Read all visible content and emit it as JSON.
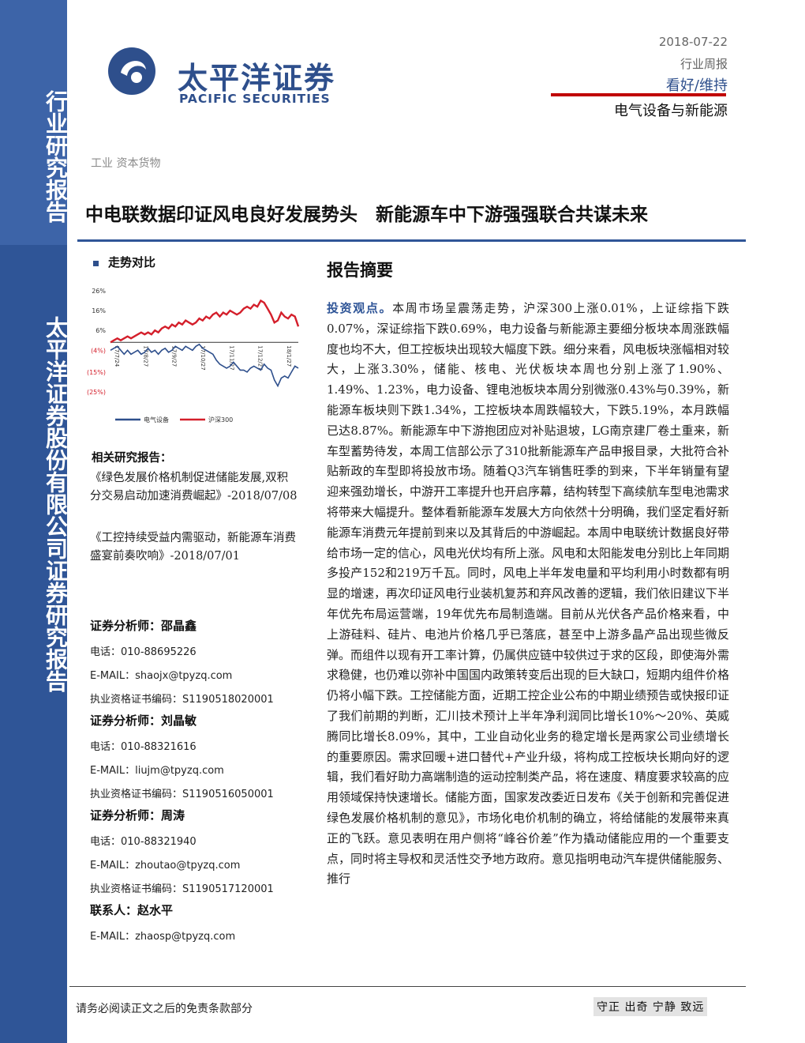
{
  "sidebar": {
    "top_text": "行业研究报告",
    "bottom_text": "太平洋证券股份有限公司证券研究报告"
  },
  "header": {
    "logo_cn": "太平洋证券",
    "logo_en": "PACIFIC SECURITIES",
    "date": "2018-07-22",
    "report_type": "行业周报",
    "rating": "看好/维持",
    "sector": "电气设备与新能源"
  },
  "industry_tag": "工业 资本货物",
  "title": "中电联数据印证风电良好发展势头　新能源车中下游强强联合共谋未来",
  "trend": {
    "heading": "走势对比"
  },
  "chart_data": {
    "type": "line",
    "y_ticks": [
      "26%",
      "16%",
      "6%",
      "(4%)",
      "(15%)",
      "(25%)"
    ],
    "x_ticks": [
      "17/7/24",
      "17/8/27",
      "17/9/27",
      "17/10/27",
      "17/11/27",
      "17/12/27",
      "18/1/27"
    ],
    "ylim": [
      -25,
      26
    ],
    "colors": {
      "电气设备": "#2e4f8c",
      "沪深300": "#d41f2b"
    },
    "series": [
      {
        "name": "电气设备",
        "values": [
          -4,
          -3,
          -2,
          -4,
          -6,
          -4,
          -6,
          -5,
          -4,
          -6,
          -5,
          -3,
          -5,
          -4,
          -6,
          -4,
          -3,
          -5,
          -4,
          -2,
          -3,
          -4,
          -2,
          -3,
          -4,
          -2,
          -1,
          -3,
          -4,
          -5,
          -6,
          -9,
          -11,
          -12,
          -13,
          -12,
          -10,
          -12,
          -14,
          -14,
          -15,
          -13,
          -12,
          -13,
          -14,
          -11,
          -13,
          -14,
          -19,
          -22,
          -18,
          -17,
          -18,
          -15,
          -12,
          -13
        ]
      },
      {
        "name": "沪深300",
        "values": [
          0,
          1,
          2,
          1,
          2,
          3,
          2,
          3,
          4,
          5,
          4,
          5,
          4,
          6,
          5,
          7,
          8,
          7,
          9,
          8,
          10,
          9,
          11,
          10,
          9,
          10,
          12,
          11,
          13,
          12,
          14,
          15,
          13,
          15,
          14,
          16,
          15,
          14,
          15,
          17,
          18,
          17,
          19,
          18,
          21,
          20,
          17,
          14,
          10,
          11,
          15,
          13,
          12,
          14,
          13,
          8
        ]
      }
    ]
  },
  "related": {
    "heading": "相关研究报告：",
    "items": [
      "《绿色发展价格机制促进储能发展,双积分交易启动加速消费崛起》-2018/07/08",
      "《工控持续受益内需驱动，新能源车消费盛宴前奏吹响》-2018/07/01"
    ]
  },
  "analysts": [
    {
      "title": "证券分析师：邵晶鑫",
      "phone": "电话：010-88695226",
      "email": "E-MAIL：shaojx@tpyzq.com",
      "cert": "执业资格证书编码：S1190518020001"
    },
    {
      "title": "证券分析师：刘晶敏",
      "phone": "电话：010-88321616",
      "email": "E-MAIL：liujm@tpyzq.com",
      "cert": "执业资格证书编码：S1190516050001"
    },
    {
      "title": "证券分析师：周涛",
      "phone": "电话：010-88321940",
      "email": "E-MAIL：zhoutao@tpyzq.com",
      "cert": "执业资格证书编码：S1190517120001"
    }
  ],
  "contact": {
    "title": "联系人：赵水平",
    "email": "E-MAIL：zhaosp@tpyzq.com"
  },
  "abstract": {
    "heading": "报告摘要",
    "keyword": "投资观点。",
    "text": "本周市场呈震荡走势，沪深300上涨0.01%，上证综指下跌0.07%，深证综指下跌0.69%，电力设备与新能源主要细分板块本周涨跌幅度也均不大，但工控板块出现较大幅度下跌。细分来看，风电板块涨幅相对较大，上涨3.30%，储能、核电、光伏板块本周也分别上涨了1.90%、1.49%、1.23%，电力设备、锂电池板块本周分别微涨0.43%与0.39%，新能源车板块则下跌1.34%，工控板块本周跌幅较大，下跌5.19%，本月跌幅已达8.87%。新能源车中下游抱团应对补贴退坡，LG南京建厂卷土重来，新车型蓄势待发，本周工信部公示了310批新能源车产品申报目录，大批符合补贴新政的车型即将投放市场。随着Q3汽车销售旺季的到来，下半年销量有望迎来强劲增长，中游开工率提升也开启序幕，结构转型下高续航车型电池需求将带来大幅提升。整体看新能源车发展大方向依然十分明确，我们坚定看好新能源车消费元年提前到来以及其背后的中游崛起。本周中电联统计数据良好带给市场一定的信心，风电光伏均有所上涨。风电和太阳能发电分别比上年同期多投产152和219万千瓦。同时，风电上半年发电量和平均利用小时数都有明显的增速，再次印证风电行业装机复苏和弃风改善的逻辑，我们依旧建议下半年优先布局运营端，19年优先布局制造端。目前从光伏各产品价格来看，中上游硅料、硅片、电池片价格几乎已落底，甚至中上游多晶产品出现些微反弹。而组件以现有开工率计算，仍属供应链中较供过于求的区段，即使海外需求稳健，也仍难以弥补中国国内政策转变后出现的巨大缺口，短期内组件价格仍将小幅下跌。工控储能方面，近期工控企业公布的中期业绩预告或快报印证了我们前期的判断，汇川技术预计上半年净利润同比增长10%～20%、英威腾同比增长8.09%，其中，工业自动化业务的稳定增长是两家公司业绩增长的重要原因。需求回暖+进口替代+产业升级，将构成工控板块长期向好的逻辑，我们看好助力高端制造的运动控制类产品，将在速度、精度要求较高的应用领域保持快速增长。储能方面，国家发改委近日发布《关于创新和完善促进绿色发展价格机制的意见》，市场化电价机制的确立，将给储能的发展带来真正的飞跃。意见表明在用户侧将“峰谷价差”作为撬动储能应用的一个重要支点，同时将主导权和灵活性交予地方政府。意见指明电动汽车提供储能服务、推行"
  },
  "footer": {
    "left": "请务必阅读正文之后的免责条款部分",
    "right": "守正 出奇 宁静 致远"
  }
}
